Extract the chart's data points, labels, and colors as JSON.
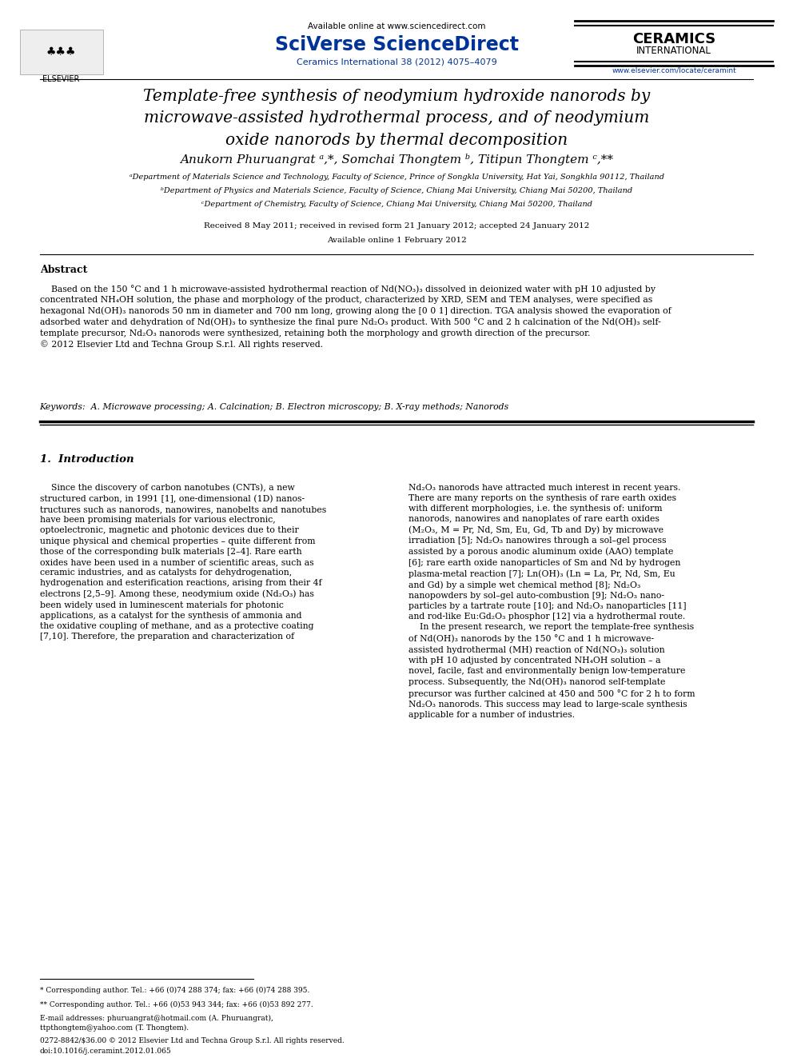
{
  "bg_color": "#ffffff",
  "page_width": 9.92,
  "page_height": 13.23,
  "header": {
    "available_online_text": "Available online at www.sciencedirect.com",
    "available_online_color": "#000000",
    "sciverse_text": "SciVerse ScienceDirect",
    "sciverse_color": "#003399",
    "journal_ref_text": "Ceramics International 38 (2012) 4075–4079",
    "journal_ref_color": "#003399",
    "ceramics_line1": "CERAMICS",
    "ceramics_line2": "INTERNATIONAL",
    "ceramics_color": "#000000",
    "elsevier_text": "ELSEVIER",
    "website_text": "www.elsevier.com/locate/ceramint",
    "website_color": "#003399"
  },
  "title": "Template-free synthesis of neodymium hydroxide nanorods by\nmicrowave-assisted hydrothermal process, and of neodymium\noxide nanorods by thermal decomposition",
  "title_color": "#000000",
  "affil_a": "ᵃDepartment of Materials Science and Technology, Faculty of Science, Prince of Songkla University, Hat Yai, Songkhla 90112, Thailand",
  "affil_b": "ᵇDepartment of Physics and Materials Science, Faculty of Science, Chiang Mai University, Chiang Mai 50200, Thailand",
  "affil_c": "ᶜDepartment of Chemistry, Faculty of Science, Chiang Mai University, Chiang Mai 50200, Thailand",
  "received_text": "Received 8 May 2011; received in revised form 21 January 2012; accepted 24 January 2012",
  "available_text": "Available online 1 February 2012",
  "abstract_heading": "Abstract",
  "abstract_body": "    Based on the 150 °C and 1 h microwave-assisted hydrothermal reaction of Nd(NO₃)₃ dissolved in deionized water with pH 10 adjusted by\nconcentrated NH₄OH solution, the phase and morphology of the product, characterized by XRD, SEM and TEM analyses, were specified as\nhexagonal Nd(OH)₃ nanorods 50 nm in diameter and 700 nm long, growing along the [0 0 1] direction. TGA analysis showed the evaporation of\nadsorbed water and dehydration of Nd(OH)₃ to synthesize the final pure Nd₂O₃ product. With 500 °C and 2 h calcination of the Nd(OH)₃ self-\ntemplate precursor, Nd₂O₃ nanorods were synthesized, retaining both the morphology and growth direction of the precursor.\n© 2012 Elsevier Ltd and Techna Group S.r.l. All rights reserved.",
  "keywords_text": "Keywords:  A. Microwave processing; A. Calcination; B. Electron microscopy; B. X-ray methods; Nanorods",
  "section1_heading": "1.  Introduction",
  "intro_left": "    Since the discovery of carbon nanotubes (CNTs), a new\nstructured carbon, in 1991 [1], one-dimensional (1D) nanos-\ntructures such as nanorods, nanowires, nanobelts and nanotubes\nhave been promising materials for various electronic,\noptoelectronic, magnetic and photonic devices due to their\nunique physical and chemical properties – quite different from\nthose of the corresponding bulk materials [2–4]. Rare earth\noxides have been used in a number of scientific areas, such as\nceramic industries, and as catalysts for dehydrogenation,\nhydrogenation and esterification reactions, arising from their 4f\nelectrons [2,5–9]. Among these, neodymium oxide (Nd₂O₃) has\nbeen widely used in luminescent materials for photonic\napplications, as a catalyst for the synthesis of ammonia and\nthe oxidative coupling of methane, and as a protective coating\n[7,10]. Therefore, the preparation and characterization of",
  "intro_right": "Nd₂O₃ nanorods have attracted much interest in recent years.\nThere are many reports on the synthesis of rare earth oxides\nwith different morphologies, i.e. the synthesis of: uniform\nnanorods, nanowires and nanoplates of rare earth oxides\n(M₂O₃, M = Pr, Nd, Sm, Eu, Gd, Tb and Dy) by microwave\nirradiation [5]; Nd₂O₃ nanowires through a sol–gel process\nassisted by a porous anodic aluminum oxide (AAO) template\n[6]; rare earth oxide nanoparticles of Sm and Nd by hydrogen\nplasma-metal reaction [7]; Ln(OH)₃ (Ln = La, Pr, Nd, Sm, Eu\nand Gd) by a simple wet chemical method [8]; Nd₂O₃\nnanopowders by sol–gel auto-combustion [9]; Nd₂O₃ nano-\nparticles by a tartrate route [10]; and Nd₂O₃ nanoparticles [11]\nand rod-like Eu:Gd₂O₃ phosphor [12] via a hydrothermal route.\n    In the present research, we report the template-free synthesis\nof Nd(OH)₃ nanorods by the 150 °C and 1 h microwave-\nassisted hydrothermal (MH) reaction of Nd(NO₃)₃ solution\nwith pH 10 adjusted by concentrated NH₄OH solution – a\nnovel, facile, fast and environmentally benign low-temperature\nprocess. Subsequently, the Nd(OH)₃ nanorod self-template\nprecursor was further calcined at 450 and 500 °C for 2 h to form\nNd₂O₃ nanorods. This success may lead to large-scale synthesis\napplicable for a number of industries.",
  "footnote_star": "* Corresponding author. Tel.: +66 (0)74 288 374; fax: +66 (0)74 288 395.",
  "footnote_dstar": "** Corresponding author. Tel.: +66 (0)53 943 344; fax: +66 (0)53 892 277.",
  "footnote_email": "E-mail addresses: phuruangrat@hotmail.com (A. Phuruangrat),\nttpthongtem@yahoo.com (T. Thongtem).",
  "bottom_line1": "0272-8842/$36.00 © 2012 Elsevier Ltd and Techna Group S.r.l. All rights reserved.",
  "bottom_line2": "doi:10.1016/j.ceramint.2012.01.065"
}
